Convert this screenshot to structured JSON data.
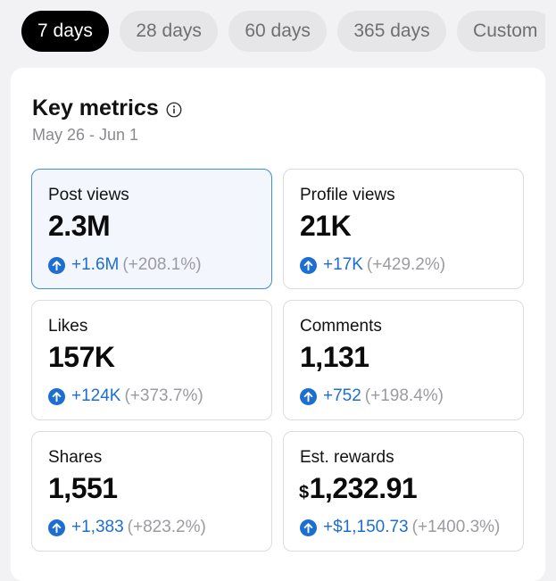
{
  "tabs": [
    {
      "label": "7 days",
      "active": true
    },
    {
      "label": "28 days",
      "active": false
    },
    {
      "label": "60 days",
      "active": false
    },
    {
      "label": "365 days",
      "active": false
    },
    {
      "label": "Custom",
      "active": false
    }
  ],
  "metrics": {
    "title": "Key metrics",
    "date_range": "May 26 - Jun 1",
    "tiles": [
      {
        "label": "Post views",
        "currency": "",
        "value": "2.3M",
        "delta": "+1.6M",
        "percent": "(+208.1%)",
        "selected": true
      },
      {
        "label": "Profile views",
        "currency": "",
        "value": "21K",
        "delta": "+17K",
        "percent": "(+429.2%)",
        "selected": false
      },
      {
        "label": "Likes",
        "currency": "",
        "value": "157K",
        "delta": "+124K",
        "percent": "(+373.7%)",
        "selected": false
      },
      {
        "label": "Comments",
        "currency": "",
        "value": "1,131",
        "delta": "+752",
        "percent": "(+198.4%)",
        "selected": false
      },
      {
        "label": "Shares",
        "currency": "",
        "value": "1,551",
        "delta": "+1,383",
        "percent": "(+823.2%)",
        "selected": false
      },
      {
        "label": "Est. rewards",
        "currency": "$",
        "value": "1,232.91",
        "delta": "+$1,150.73",
        "percent": "(+1400.3%)",
        "selected": false
      }
    ]
  },
  "colors": {
    "accent": "#1c6fd1",
    "selected_border": "#3d8fd9",
    "active_tab_bg": "#000000"
  },
  "icons": {
    "info": "info-circle-icon",
    "increase": "arrow-up-circle-icon"
  }
}
